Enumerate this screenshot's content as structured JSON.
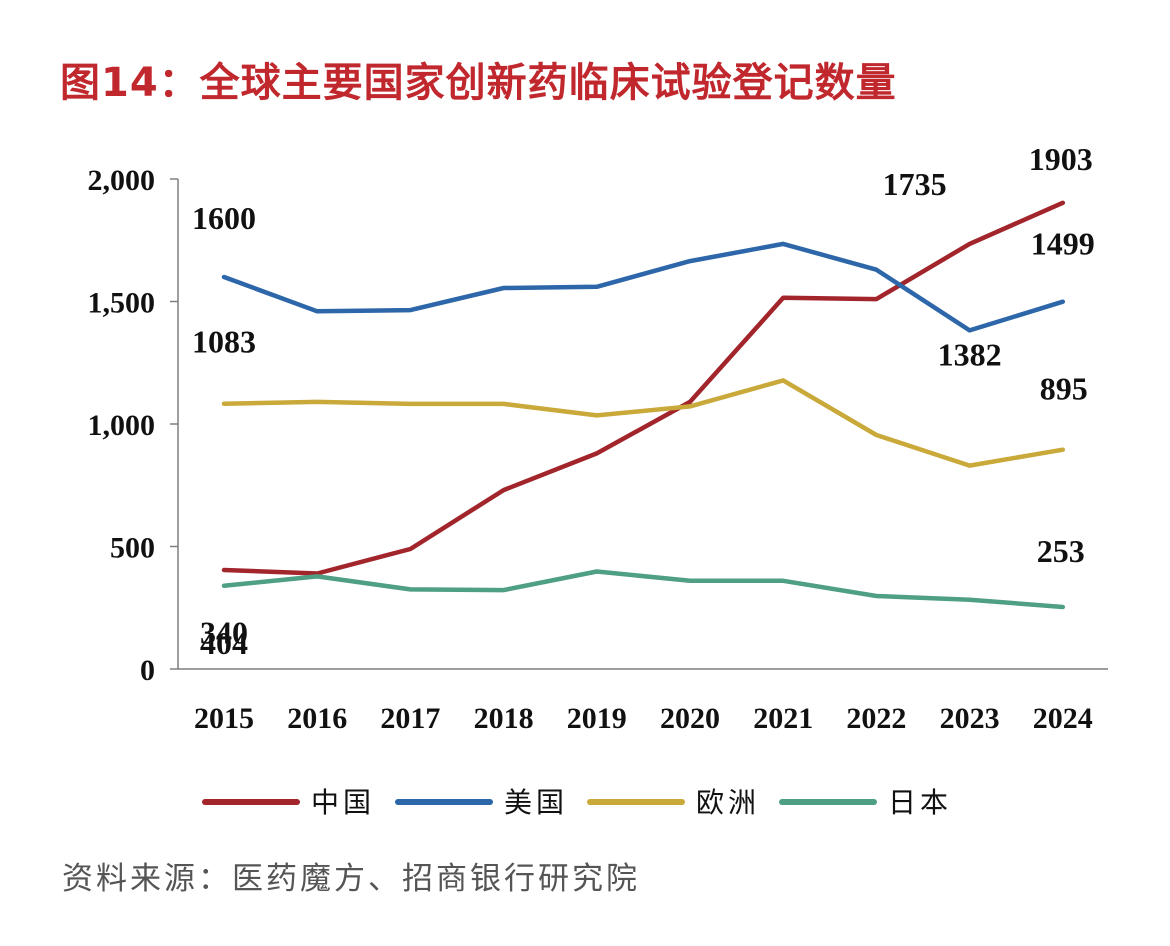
{
  "figure": {
    "title": "图14：全球主要国家创新药临床试验登记数量",
    "source": "资料来源：医药魔方、招商银行研究院"
  },
  "chart_data": {
    "type": "line",
    "title": "图14：全球主要国家创新药临床试验登记数量",
    "xlabel": "",
    "ylabel": "",
    "categories": [
      "2015",
      "2016",
      "2017",
      "2018",
      "2019",
      "2020",
      "2021",
      "2022",
      "2023",
      "2024"
    ],
    "ylim": [
      0,
      2000
    ],
    "yticks": [
      0,
      500,
      1000,
      1500,
      2000
    ],
    "ytick_labels": [
      "0",
      "500",
      "1,000",
      "1,500",
      "2,000"
    ],
    "grid": false,
    "legend_position": "bottom",
    "series": [
      {
        "name": "中国",
        "color": "#a2252c",
        "values": [
          404,
          390,
          490,
          730,
          880,
          1090,
          1515,
          1510,
          1735,
          1903
        ]
      },
      {
        "name": "美国",
        "color": "#2e66aa",
        "values": [
          1600,
          1460,
          1465,
          1555,
          1560,
          1665,
          1735,
          1630,
          1382,
          1499
        ]
      },
      {
        "name": "欧洲",
        "color": "#c9a93a",
        "values": [
          1083,
          1090,
          1082,
          1082,
          1035,
          1072,
          1178,
          955,
          830,
          895
        ]
      },
      {
        "name": "日本",
        "color": "#4e9f84",
        "values": [
          340,
          378,
          325,
          322,
          398,
          360,
          360,
          298,
          283,
          253
        ]
      }
    ],
    "annotations": [
      {
        "series": "美国",
        "category": "2015",
        "text": "1600"
      },
      {
        "series": "欧洲",
        "category": "2015",
        "text": "1083"
      },
      {
        "series": "中国",
        "category": "2015",
        "text": "404"
      },
      {
        "series": "日本",
        "category": "2015",
        "text": "340"
      },
      {
        "series": "中国",
        "category": "2023",
        "text": "1735"
      },
      {
        "series": "中国",
        "category": "2024",
        "text": "1903"
      },
      {
        "series": "美国",
        "category": "2024",
        "text": "1499"
      },
      {
        "series": "美国",
        "category": "2023",
        "text": "1382"
      },
      {
        "series": "欧洲",
        "category": "2024",
        "text": "895"
      },
      {
        "series": "日本",
        "category": "2024",
        "text": "253"
      }
    ]
  }
}
